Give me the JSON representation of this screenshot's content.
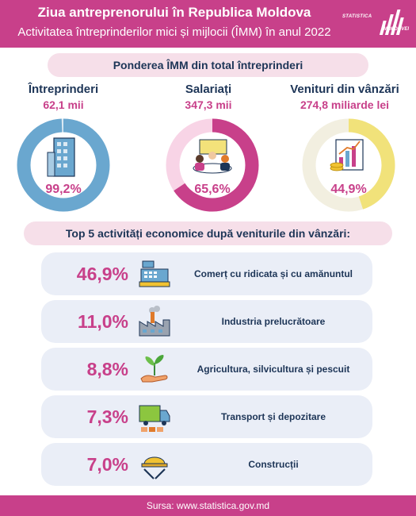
{
  "header": {
    "title": "Ziua antreprenorului în Republica Moldova",
    "subtitle": "Activitatea întreprinderilor mici și mijlocii (ÎMM) în anul 2022",
    "logo_top": "STATISTICA",
    "logo_bottom": "MOLDOVEI"
  },
  "section1": {
    "title": "Ponderea ÎMM din total întreprinderi"
  },
  "stats": [
    {
      "label": "Întreprinderi",
      "value": "62,1 mii",
      "percent_label": "99,2%",
      "fraction": 0.992,
      "color": "#6aa7cf",
      "icon": "office-building-icon"
    },
    {
      "label": "Salariați",
      "value": "347,3 mii",
      "percent_label": "65,6%",
      "fraction": 0.656,
      "color": "#c8408a",
      "icon": "employees-meeting-icon"
    },
    {
      "label": "Venituri din vânzări",
      "value": "274,8 miliarde lei",
      "percent_label": "44,9%",
      "fraction": 0.449,
      "color": "#f1e27a",
      "icon": "revenue-chart-icon"
    }
  ],
  "track_colors": [
    "#dbe9f3",
    "#f8d4e6",
    "#f2efe0"
  ],
  "section2": {
    "title": "Top 5 activități economice după veniturile din vânzări:"
  },
  "activities": [
    {
      "percent": "46,9%",
      "label": "Comerț cu ridicata și cu amănuntul",
      "icon": "cash-register-icon"
    },
    {
      "percent": "11,0%",
      "label": "Industria prelucrătoare",
      "icon": "factory-icon"
    },
    {
      "percent": "8,8%",
      "label": "Agricultura, silvicultura și pescuit",
      "icon": "plant-hand-icon"
    },
    {
      "percent": "7,3%",
      "label": "Transport și depozitare",
      "icon": "truck-icon"
    },
    {
      "percent": "7,0%",
      "label": "Construcții",
      "icon": "hard-hat-icon"
    }
  ],
  "footer": {
    "source": "Sursa: www.statistica.gov.md"
  }
}
